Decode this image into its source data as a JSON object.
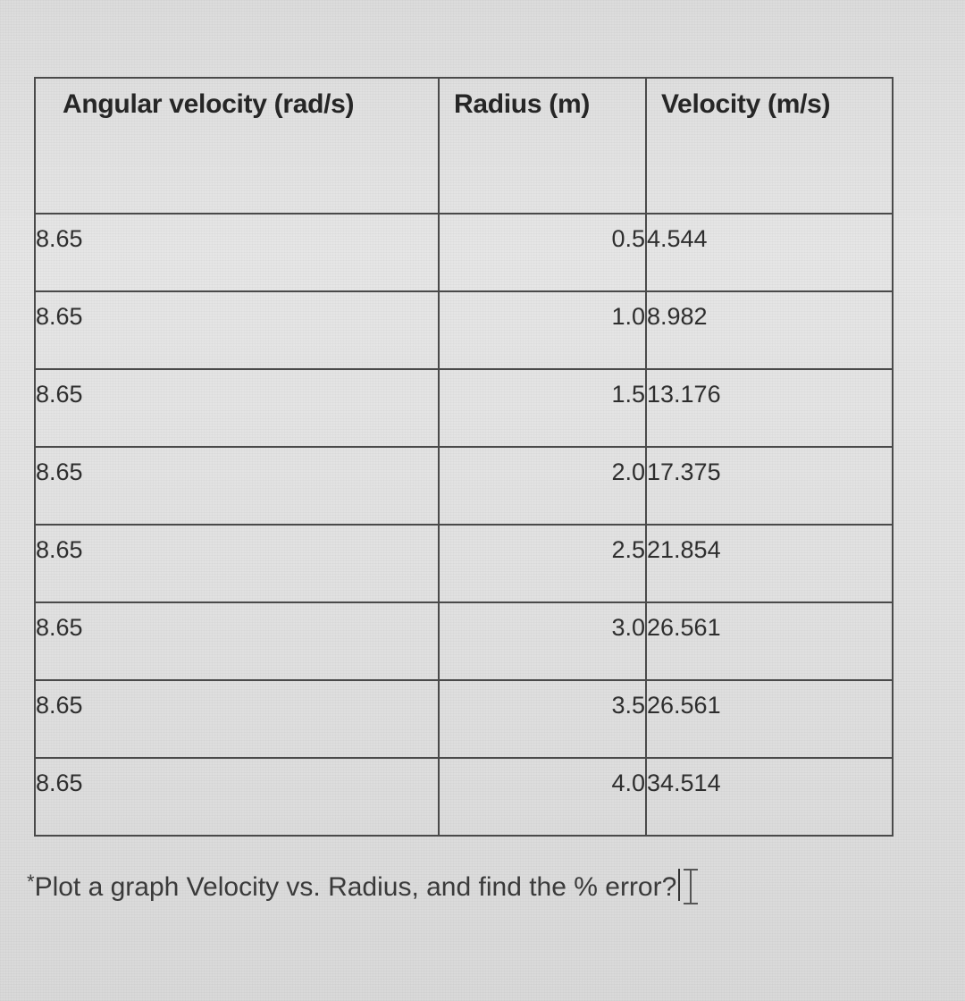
{
  "table": {
    "headers": {
      "angular_velocity": "Angular velocity (rad/s)",
      "radius": "Radius (m)",
      "velocity": "Velocity (m/s)"
    },
    "rows": [
      {
        "angular_velocity": "8.65",
        "radius": "0.5",
        "velocity": "4.544"
      },
      {
        "angular_velocity": "8.65",
        "radius": "1.0",
        "velocity": "8.982"
      },
      {
        "angular_velocity": "8.65",
        "radius": "1.5",
        "velocity": "13.176"
      },
      {
        "angular_velocity": "8.65",
        "radius": "2.0",
        "velocity": "17.375"
      },
      {
        "angular_velocity": "8.65",
        "radius": "2.5",
        "velocity": "21.854"
      },
      {
        "angular_velocity": "8.65",
        "radius": "3.0",
        "velocity": "26.561"
      },
      {
        "angular_velocity": "8.65",
        "radius": "3.5",
        "velocity": "26.561"
      },
      {
        "angular_velocity": "8.65",
        "radius": "4.0",
        "velocity": "34.514"
      }
    ]
  },
  "question": {
    "asterisk": "*",
    "text": "Plot a graph Velocity vs. Radius, and find the % error?"
  }
}
